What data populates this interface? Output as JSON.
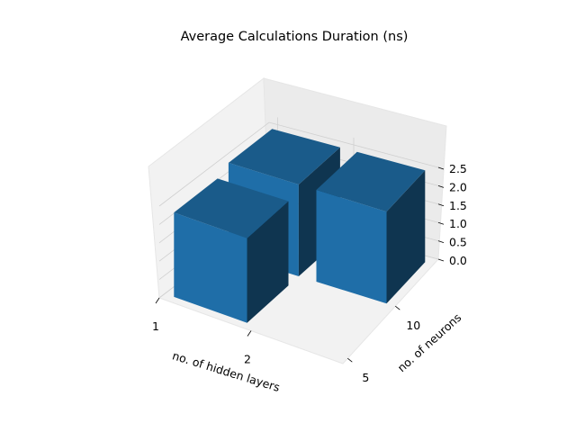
{
  "chart_data": {
    "type": "bar3d",
    "title": "Average Calculations Duration (ns)",
    "xlabel": "no. of hidden layers",
    "ylabel": "no. of neurons",
    "zlabel": "",
    "x_ticks": [
      "1",
      "2"
    ],
    "y_ticks": [
      "5",
      "10"
    ],
    "z_ticks": [
      "0.0",
      "0.5",
      "1.0",
      "1.5",
      "2.0",
      "2.5"
    ],
    "zlim": [
      0,
      2.7
    ],
    "bars": [
      {
        "hidden_layers": 1,
        "neurons": 10,
        "duration_ns": 2.5
      },
      {
        "hidden_layers": 2,
        "neurons": 10,
        "duration_ns": 2.5
      },
      {
        "hidden_layers": 1,
        "neurons": 5,
        "duration_ns": 2.3
      },
      {
        "hidden_layers": 2,
        "neurons": 5,
        "duration_ns": 0.0
      }
    ],
    "bar_colors": {
      "top": "#1a5b8a",
      "front": "#1f6ea8",
      "side": "#0f3550"
    },
    "grid": true
  }
}
